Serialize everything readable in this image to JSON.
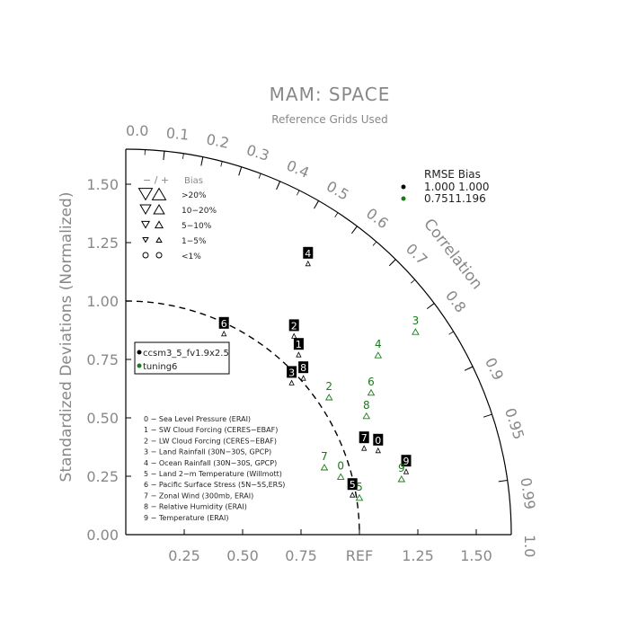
{
  "chart_data": {
    "type": "scatter",
    "diagram": "taylor",
    "title": "MAM: SPACE",
    "subtitle": "Reference Grids Used",
    "ylabel": "Standardized Deviations (Normalized)",
    "arc_label": "Correlation",
    "x_ticks": [
      "0.25",
      "0.50",
      "0.75",
      "REF",
      "1.25",
      "1.50"
    ],
    "y_ticks": [
      "0.00",
      "0.25",
      "0.50",
      "0.75",
      "1.00",
      "1.25",
      "1.50"
    ],
    "corr_ticks_outside": [
      "0.0",
      "0.1",
      "0.2",
      "0.3",
      "0.4",
      "0.5",
      "0.6",
      "0.7",
      "0.8",
      "0.9",
      "0.95",
      "0.99",
      "1.0"
    ],
    "axis_range": [
      0,
      1.65
    ],
    "reference_arc_radius": 1.0,
    "bias_legend": {
      "header_symbols": "− / +",
      "header": "Bias",
      "rows": [
        ">20%",
        "10−20%",
        "5−10%",
        "1−5%",
        "<1%"
      ]
    },
    "rmse_bias_legend": {
      "header": "RMSE Bias",
      "rows": [
        {
          "text": "1.000 1.000",
          "color": "#000000"
        },
        {
          "text": "0.7511.196",
          "color": "#1a7a1a"
        }
      ]
    },
    "series": [
      {
        "name": "ccsm3_5_fv1.9x2.5",
        "color": "#000000",
        "points": [
          {
            "id": "0",
            "x": 1.08,
            "y": 0.37
          },
          {
            "id": "1",
            "x": 0.74,
            "y": 0.78
          },
          {
            "id": "2",
            "x": 0.72,
            "y": 0.86
          },
          {
            "id": "3",
            "x": 0.71,
            "y": 0.66
          },
          {
            "id": "4",
            "x": 0.78,
            "y": 1.17
          },
          {
            "id": "5",
            "x": 0.97,
            "y": 0.18
          },
          {
            "id": "6",
            "x": 0.42,
            "y": 0.87
          },
          {
            "id": "7",
            "x": 1.02,
            "y": 0.38
          },
          {
            "id": "8",
            "x": 0.76,
            "y": 0.68
          },
          {
            "id": "9",
            "x": 1.2,
            "y": 0.28
          }
        ]
      },
      {
        "name": "tuning6",
        "color": "#1a7a1a",
        "points": [
          {
            "id": "0",
            "x": 0.92,
            "y": 0.26
          },
          {
            "id": "2",
            "x": 0.87,
            "y": 0.6
          },
          {
            "id": "3",
            "x": 1.24,
            "y": 0.88
          },
          {
            "id": "4",
            "x": 1.08,
            "y": 0.78
          },
          {
            "id": "5",
            "x": 1.0,
            "y": 0.17
          },
          {
            "id": "6",
            "x": 1.05,
            "y": 0.62
          },
          {
            "id": "7",
            "x": 0.85,
            "y": 0.3
          },
          {
            "id": "8",
            "x": 1.03,
            "y": 0.52
          },
          {
            "id": "9",
            "x": 1.18,
            "y": 0.25
          }
        ]
      }
    ],
    "case_legend": [
      {
        "text": "ccsm3_5_fv1.9x2.5",
        "color": "#000000"
      },
      {
        "text": "tuning6",
        "color": "#1a7a1a"
      }
    ],
    "variables": [
      "0 − Sea Level Pressure (ERAI)",
      "1 − SW Cloud Forcing (CERES−EBAF)",
      "2 − LW Cloud Forcing (CERES−EBAF)",
      "3 − Land Rainfall (30N−30S, GPCP)",
      "4 − Ocean Rainfall (30N−30S, GPCP)",
      "5 − Land 2−m Temperature (Willmott)",
      "6 − Pacific Surface Stress (5N−5S,ERS)",
      "7 − Zonal Wind (300mb, ERAI)",
      "8 − Relative Humidity (ERAI)",
      "9 − Temperature (ERAI)"
    ]
  }
}
